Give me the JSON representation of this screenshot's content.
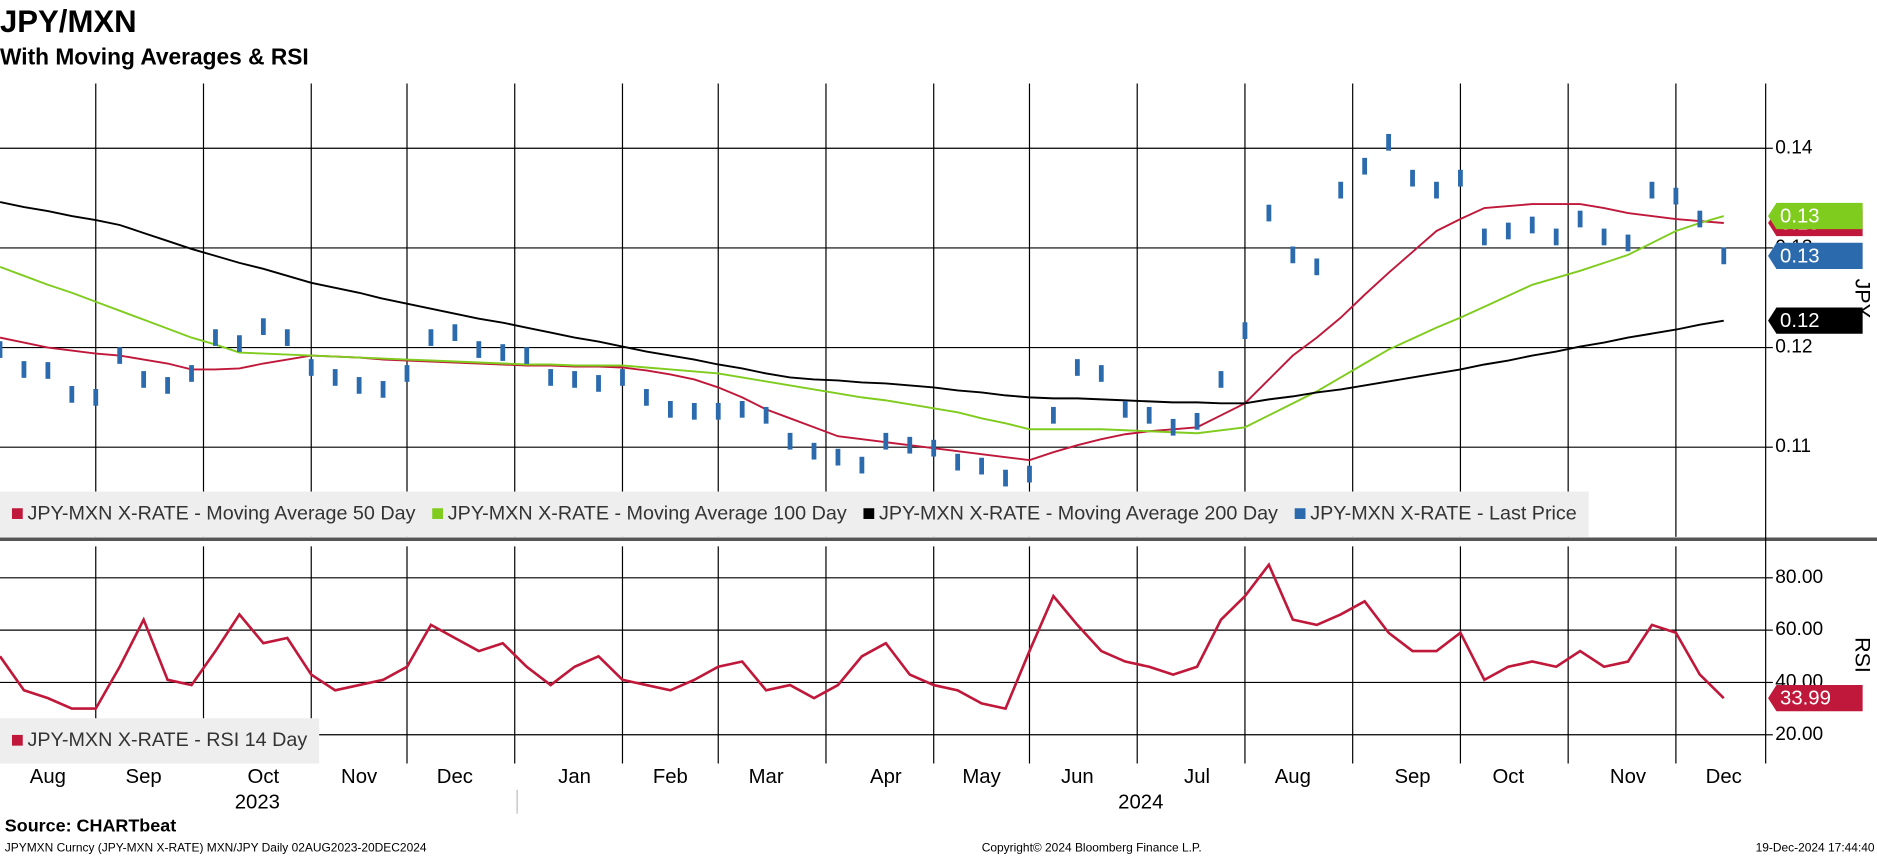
{
  "header": {
    "title": "JPY/MXN",
    "subtitle": "With Moving Averages & RSI"
  },
  "chart_data": [
    {
      "type": "line",
      "y_label": "JPY",
      "grid": true,
      "legend": "bottom-left",
      "categories": [
        null,
        null,
        "Aug",
        null,
        null,
        null,
        "Sep",
        null,
        null,
        null,
        null,
        "Oct",
        null,
        null,
        null,
        "Nov",
        null,
        null,
        null,
        "Dec",
        null,
        null,
        null,
        null,
        "Jan",
        null,
        null,
        null,
        "Feb",
        null,
        null,
        null,
        "Mar",
        null,
        null,
        null,
        null,
        "Apr",
        null,
        null,
        null,
        "May",
        null,
        null,
        null,
        "Jun",
        null,
        null,
        null,
        null,
        "Jul",
        null,
        null,
        null,
        "Aug",
        null,
        null,
        null,
        null,
        "Sep",
        null,
        null,
        null,
        "Oct",
        null,
        null,
        null,
        null,
        "Nov",
        null,
        null,
        null,
        "Dec"
      ],
      "years": [
        "2023",
        "2024"
      ],
      "ylim": [
        0.101,
        0.1465
      ],
      "yticks": [
        0.11,
        0.12,
        0.13,
        0.14
      ],
      "series": [
        {
          "name": "JPY-MXN X-RATE - Moving Average 50 Day",
          "color": "#c0183a",
          "marker": "line",
          "last_label": "0.13",
          "values": [
            0.121,
            0.1205,
            0.12,
            0.1197,
            0.1194,
            0.1192,
            0.1188,
            0.1184,
            0.1178,
            0.1178,
            0.1179,
            0.1184,
            0.1188,
            0.1192,
            0.1191,
            0.119,
            0.1188,
            0.1187,
            0.1186,
            0.1185,
            0.1184,
            0.1183,
            0.1182,
            0.1182,
            0.1181,
            0.1181,
            0.118,
            0.1177,
            0.1173,
            0.1168,
            0.116,
            0.115,
            0.1138,
            0.1129,
            0.112,
            0.1111,
            0.1108,
            0.1105,
            0.1102,
            0.1099,
            0.1096,
            0.1093,
            0.109,
            0.1087,
            0.1095,
            0.1102,
            0.1108,
            0.1113,
            0.1116,
            0.1118,
            0.112,
            0.1132,
            0.1144,
            0.1168,
            0.1192,
            0.121,
            0.123,
            0.1253,
            0.1275,
            0.1296,
            0.1317,
            0.1329,
            0.134,
            0.1342,
            0.1344,
            0.1344,
            0.1344,
            0.134,
            0.1335,
            0.1332,
            0.1329,
            0.1327,
            0.1325
          ]
        },
        {
          "name": "JPY-MXN X-RATE - Moving Average 100 Day",
          "color": "#7fcc1e",
          "marker": "line",
          "last_label": "0.13",
          "values": [
            0.1281,
            0.1272,
            0.1263,
            0.1255,
            0.1246,
            0.1237,
            0.1228,
            0.1219,
            0.121,
            0.1203,
            0.1195,
            0.1194,
            0.1193,
            0.1192,
            0.1191,
            0.119,
            0.1189,
            0.1188,
            0.1187,
            0.1186,
            0.1185,
            0.1184,
            0.1183,
            0.1183,
            0.1182,
            0.1182,
            0.1182,
            0.118,
            0.1178,
            0.1176,
            0.1174,
            0.117,
            0.1166,
            0.1162,
            0.1158,
            0.1154,
            0.115,
            0.1147,
            0.1143,
            0.1139,
            0.1135,
            0.1129,
            0.1124,
            0.1118,
            0.1118,
            0.1118,
            0.1118,
            0.1117,
            0.1116,
            0.1115,
            0.1114,
            0.1117,
            0.112,
            0.1132,
            0.1144,
            0.1156,
            0.117,
            0.1184,
            0.1198,
            0.1209,
            0.122,
            0.123,
            0.1241,
            0.1252,
            0.1263,
            0.127,
            0.1277,
            0.1285,
            0.1293,
            0.1305,
            0.1317,
            0.1325,
            0.1332
          ]
        },
        {
          "name": "JPY-MXN X-RATE - Moving Average 200 Day",
          "color": "#000000",
          "marker": "line",
          "last_label": "0.12",
          "values": [
            0.1346,
            0.1341,
            0.1337,
            0.1332,
            0.1328,
            0.1323,
            0.1315,
            0.1307,
            0.1299,
            0.1292,
            0.1285,
            0.1279,
            0.1272,
            0.1265,
            0.126,
            0.1255,
            0.1249,
            0.1244,
            0.1239,
            0.1234,
            0.1229,
            0.1225,
            0.122,
            0.1215,
            0.121,
            0.1206,
            0.1201,
            0.1196,
            0.1192,
            0.1188,
            0.1183,
            0.1179,
            0.1174,
            0.117,
            0.1168,
            0.1167,
            0.1165,
            0.1164,
            0.1162,
            0.116,
            0.1157,
            0.1155,
            0.1152,
            0.115,
            0.1149,
            0.1149,
            0.1148,
            0.1147,
            0.1146,
            0.1145,
            0.1145,
            0.1144,
            0.1144,
            0.1148,
            0.1151,
            0.1155,
            0.1158,
            0.1162,
            0.1166,
            0.117,
            0.1174,
            0.1178,
            0.1183,
            0.1187,
            0.1192,
            0.1196,
            0.1201,
            0.1205,
            0.121,
            0.1214,
            0.1218,
            0.1223,
            0.1227
          ]
        },
        {
          "name": "JPY-MXN X-RATE - Last Price",
          "color": "#2a6aad",
          "marker": "bar",
          "last_label": "0.13",
          "values": [
            0.1198,
            0.1178,
            0.1177,
            0.1153,
            0.115,
            0.1192,
            0.1168,
            0.1162,
            0.1174,
            0.121,
            0.1204,
            0.1221,
            0.121,
            0.118,
            0.117,
            0.1162,
            0.1158,
            0.1174,
            0.121,
            0.1215,
            0.1198,
            0.1195,
            0.1192,
            0.117,
            0.1168,
            0.1164,
            0.117,
            0.115,
            0.1138,
            0.1136,
            0.1136,
            0.1138,
            0.1132,
            0.1106,
            0.1096,
            0.109,
            0.1082,
            0.1106,
            0.1102,
            0.1099,
            0.1085,
            0.1081,
            0.1069,
            0.1073,
            0.1132,
            0.118,
            0.1174,
            0.1138,
            0.1132,
            0.112,
            0.1126,
            0.1168,
            0.1217,
            0.1335,
            0.1293,
            0.1281,
            0.1358,
            0.1382,
            0.1406,
            0.137,
            0.1358,
            0.137,
            0.1311,
            0.1317,
            0.1323,
            0.1311,
            0.1329,
            0.1311,
            0.1305,
            0.1358,
            0.1352,
            0.1329,
            0.1292
          ]
        }
      ]
    },
    {
      "type": "line",
      "y_label": "RSI",
      "grid": true,
      "legend": "bottom-left",
      "ylim": [
        9,
        92
      ],
      "yticks": [
        {
          "value": 20,
          "label": "20.00"
        },
        {
          "value": 40,
          "label": "40.00"
        },
        {
          "value": 60,
          "label": "60.00"
        },
        {
          "value": 80,
          "label": "80.00"
        }
      ],
      "series": [
        {
          "name": "JPY-MXN X-RATE - RSI 14 Day",
          "color": "#c0183a",
          "marker": "line",
          "last_label": "33.99",
          "values": [
            50,
            37,
            34,
            30,
            30,
            46,
            64,
            41,
            39,
            52,
            66,
            55,
            57,
            43,
            37,
            39,
            41,
            46,
            62,
            57,
            52,
            55,
            46,
            39,
            46,
            50,
            41,
            39,
            37,
            41,
            46,
            48,
            37,
            39,
            34,
            39,
            50,
            55,
            43,
            39,
            37,
            32,
            30,
            52,
            73,
            62,
            52,
            48,
            46,
            43,
            46,
            64,
            73,
            85,
            64,
            62,
            66,
            71,
            59,
            52,
            52,
            59,
            41,
            46,
            48,
            46,
            52,
            46,
            48,
            62,
            59,
            43,
            33.99
          ]
        }
      ]
    }
  ],
  "footer": {
    "source": "Source: CHARTbeat",
    "ticker": "JPYMXN Curncy (JPY-MXN X-RATE) MXN/JPY  Daily 02AUG2023-20DEC2024",
    "copyright": "Copyright© 2024 Bloomberg Finance L.P.",
    "timestamp": "19-Dec-2024 17:44:40"
  }
}
